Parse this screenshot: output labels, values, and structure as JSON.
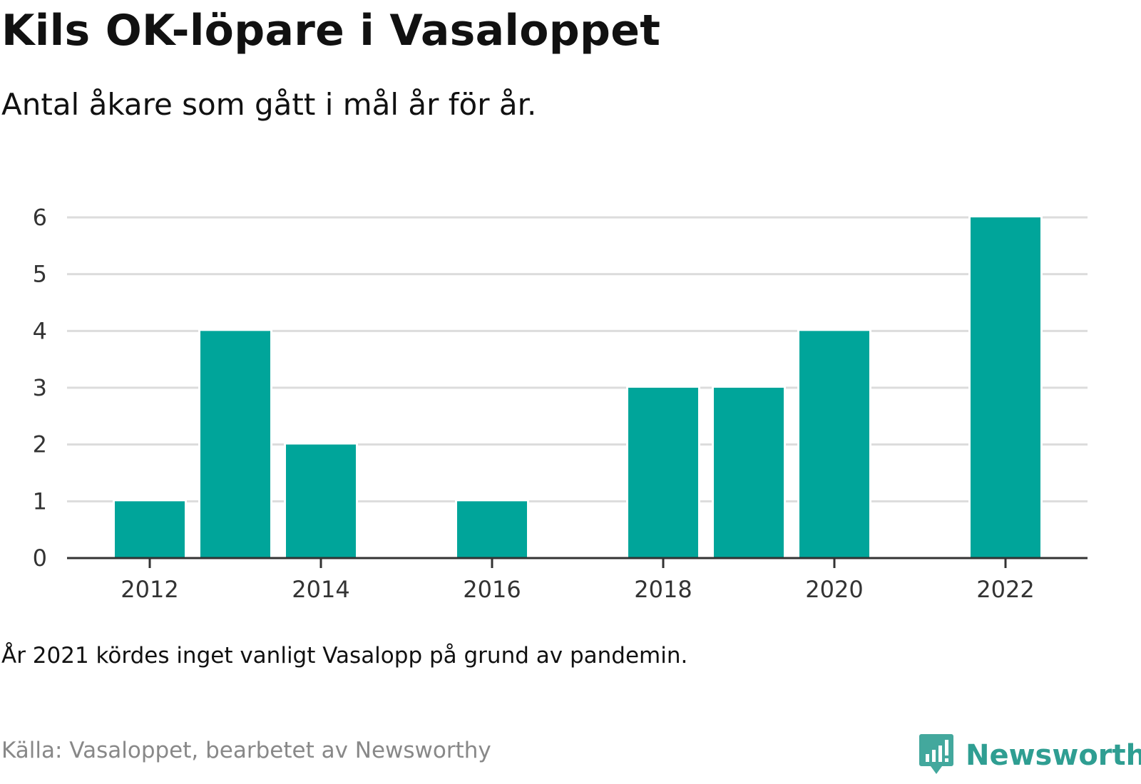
{
  "header": {
    "title": "Kils OK-löpare i Vasaloppet",
    "subtitle": "Antal åkare som gått i mål år för år."
  },
  "chart_data": {
    "type": "bar",
    "categories": [
      "2012",
      "2013",
      "2014",
      "2015",
      "2016",
      "2017",
      "2018",
      "2019",
      "2020",
      "2021",
      "2022"
    ],
    "values": [
      1,
      4,
      2,
      0,
      1,
      0,
      3,
      3,
      4,
      0,
      6
    ],
    "x_tick_labels": [
      "2012",
      "2014",
      "2016",
      "2018",
      "2020",
      "2022"
    ],
    "y_ticks": [
      0,
      1,
      2,
      3,
      4,
      5,
      6
    ],
    "ylim": [
      0,
      6
    ],
    "grid": true,
    "bar_color": "#00a59a"
  },
  "footer": {
    "note": "År 2021 kördes inget vanligt Vasalopp på grund av pandemin.",
    "source": "Källa: Vasaloppet, bearbetet av Newsworthy",
    "logo_text": "Newsworthy",
    "logo_icon": "bar-chart-speech-bubble-icon",
    "logo_color": "#2f9e92"
  }
}
